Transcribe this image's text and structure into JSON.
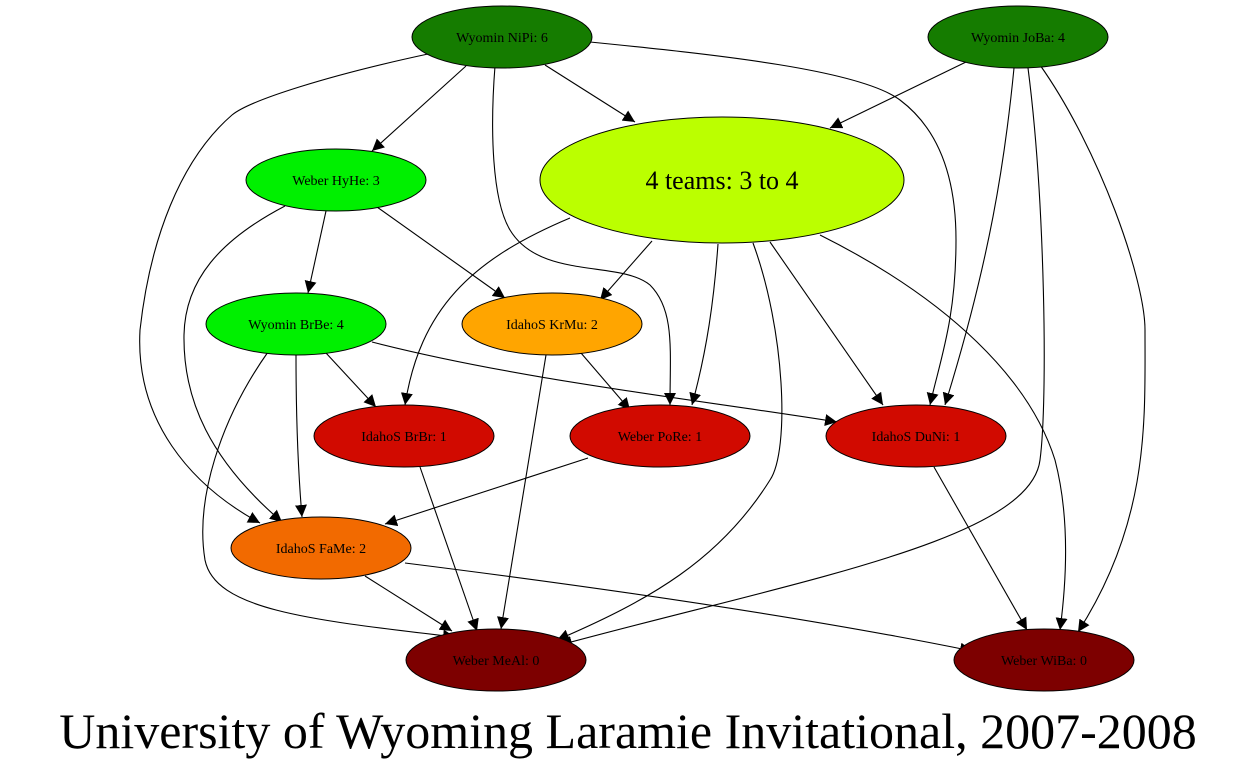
{
  "title": "University of Wyoming Laramie Invitational, 2007-2008",
  "nodes": [
    {
      "id": "nipi",
      "label": "Wyomin NiPi: 6",
      "color": "#157c00",
      "big": false
    },
    {
      "id": "joba",
      "label": "Wyomin JoBa: 4",
      "color": "#157c00",
      "big": false
    },
    {
      "id": "hyhe",
      "label": "Weber HyHe: 3",
      "color": "#00f000",
      "big": false
    },
    {
      "id": "group",
      "label": "4 teams: 3 to 4",
      "color": "#bbff00",
      "big": true
    },
    {
      "id": "brbe",
      "label": "Wyomin BrBe: 4",
      "color": "#00f000",
      "big": false
    },
    {
      "id": "krmu",
      "label": "IdahoS KrMu: 2",
      "color": "#ffa500",
      "big": false
    },
    {
      "id": "brbr",
      "label": "IdahoS BrBr: 1",
      "color": "#d10a00",
      "big": false
    },
    {
      "id": "pore",
      "label": "Weber PoRe: 1",
      "color": "#d10a00",
      "big": false
    },
    {
      "id": "duni",
      "label": "IdahoS DuNi: 1",
      "color": "#d10a00",
      "big": false
    },
    {
      "id": "fame",
      "label": "IdahoS FaMe: 2",
      "color": "#f26a00",
      "big": false
    },
    {
      "id": "meal",
      "label": "Weber MeAl: 0",
      "color": "#7d0000",
      "big": false
    },
    {
      "id": "wiba",
      "label": "Weber WiBa: 0",
      "color": "#7d0000",
      "big": false
    }
  ],
  "edges": [
    {
      "id": "nipi-hyhe",
      "from": "nipi",
      "to": "hyhe"
    },
    {
      "id": "nipi-group",
      "from": "nipi",
      "to": "group"
    },
    {
      "id": "nipi-fame",
      "from": "nipi",
      "to": "fame"
    },
    {
      "id": "nipi-pore",
      "from": "nipi",
      "to": "pore"
    },
    {
      "id": "nipi-duni",
      "from": "nipi",
      "to": "duni"
    },
    {
      "id": "joba-group",
      "from": "joba",
      "to": "group"
    },
    {
      "id": "joba-duni",
      "from": "joba",
      "to": "duni"
    },
    {
      "id": "joba-meal",
      "from": "joba",
      "to": "meal"
    },
    {
      "id": "joba-wiba",
      "from": "joba",
      "to": "wiba"
    },
    {
      "id": "hyhe-brbe",
      "from": "hyhe",
      "to": "brbe"
    },
    {
      "id": "hyhe-krmu",
      "from": "hyhe",
      "to": "krmu"
    },
    {
      "id": "hyhe-fame",
      "from": "hyhe",
      "to": "fame"
    },
    {
      "id": "group-krmu",
      "from": "group",
      "to": "krmu"
    },
    {
      "id": "group-brbr",
      "from": "group",
      "to": "brbr"
    },
    {
      "id": "group-pore",
      "from": "group",
      "to": "pore"
    },
    {
      "id": "group-duni",
      "from": "group",
      "to": "duni"
    },
    {
      "id": "group-meal",
      "from": "group",
      "to": "meal"
    },
    {
      "id": "group-wiba",
      "from": "group",
      "to": "wiba"
    },
    {
      "id": "brbe-brbr",
      "from": "brbe",
      "to": "brbr"
    },
    {
      "id": "brbe-duni",
      "from": "brbe",
      "to": "duni"
    },
    {
      "id": "brbe-fame",
      "from": "brbe",
      "to": "fame"
    },
    {
      "id": "brbe-meal",
      "from": "brbe",
      "to": "meal"
    },
    {
      "id": "krmu-pore",
      "from": "krmu",
      "to": "pore"
    },
    {
      "id": "krmu-meal",
      "from": "krmu",
      "to": "meal"
    },
    {
      "id": "brbr-meal",
      "from": "brbr",
      "to": "meal"
    },
    {
      "id": "pore-fame",
      "from": "pore",
      "to": "fame"
    },
    {
      "id": "duni-wiba",
      "from": "duni",
      "to": "wiba"
    },
    {
      "id": "fame-meal",
      "from": "fame",
      "to": "meal"
    },
    {
      "id": "fame-wiba",
      "from": "fame",
      "to": "wiba"
    }
  ]
}
